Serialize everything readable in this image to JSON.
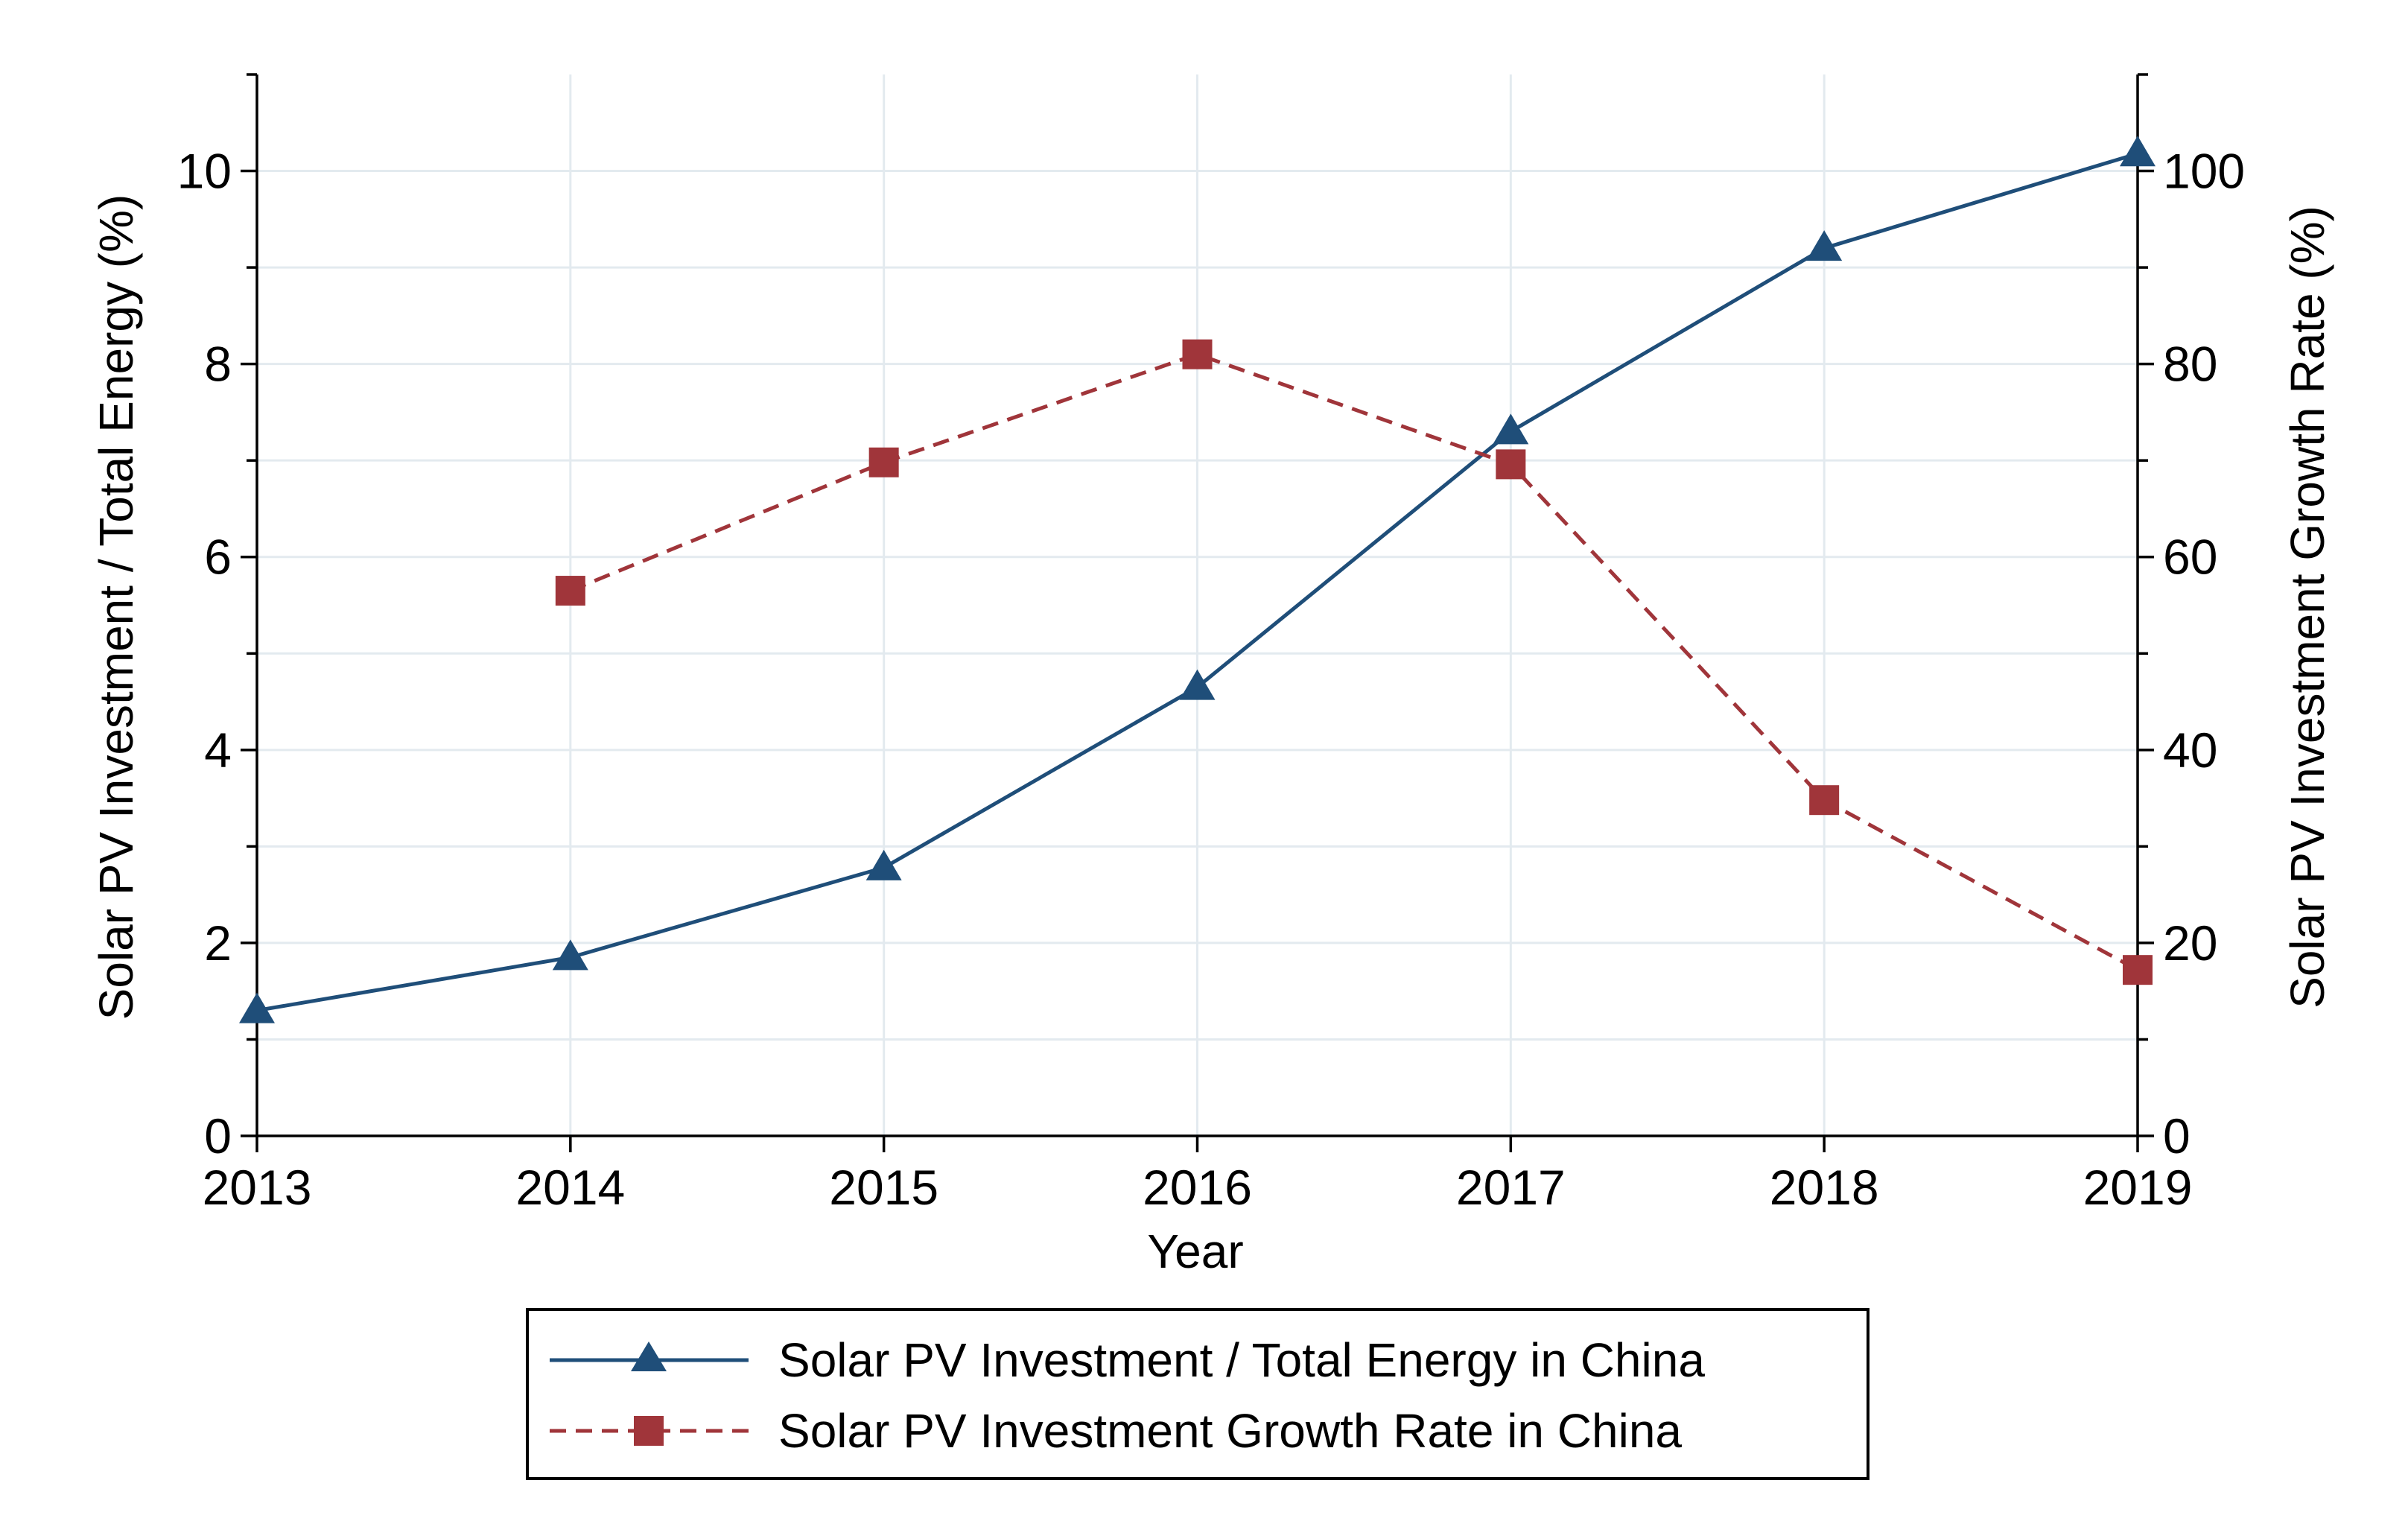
{
  "chart_data": {
    "type": "line",
    "x": [
      2013,
      2014,
      2015,
      2016,
      2017,
      2018,
      2019
    ],
    "xlabel": "Year",
    "ylabel_left": "Solar PV Investment / Total Energy (%)",
    "ylabel_right": "Solar PV Investment Growth Rate (%)",
    "xlim": [
      2013,
      2019
    ],
    "ylim_left": [
      0,
      11
    ],
    "ylim_right": [
      0,
      110
    ],
    "yticks_left": [
      0,
      2,
      4,
      6,
      8,
      10
    ],
    "yticks_right": [
      0,
      20,
      40,
      60,
      80,
      100
    ],
    "xticks": [
      2013,
      2014,
      2015,
      2016,
      2017,
      2018,
      2019
    ],
    "grid": true,
    "legend_position": "bottom-center",
    "series": [
      {
        "name": "Solar PV Investment / Total Energy in China",
        "axis": "left",
        "marker": "triangle",
        "line_style": "solid",
        "color": "#1f4e79",
        "x": [
          2013,
          2014,
          2015,
          2016,
          2017,
          2018,
          2019
        ],
        "values": [
          1.3,
          1.85,
          2.78,
          4.65,
          7.3,
          9.2,
          10.18
        ]
      },
      {
        "name": "Solar PV Investment Growth Rate in China",
        "axis": "right",
        "marker": "square",
        "line_style": "dashed",
        "color": "#a0353a",
        "x": [
          2014,
          2015,
          2016,
          2017,
          2018,
          2019
        ],
        "values": [
          56.5,
          69.8,
          81,
          69.6,
          34.8,
          17.2
        ]
      }
    ]
  }
}
